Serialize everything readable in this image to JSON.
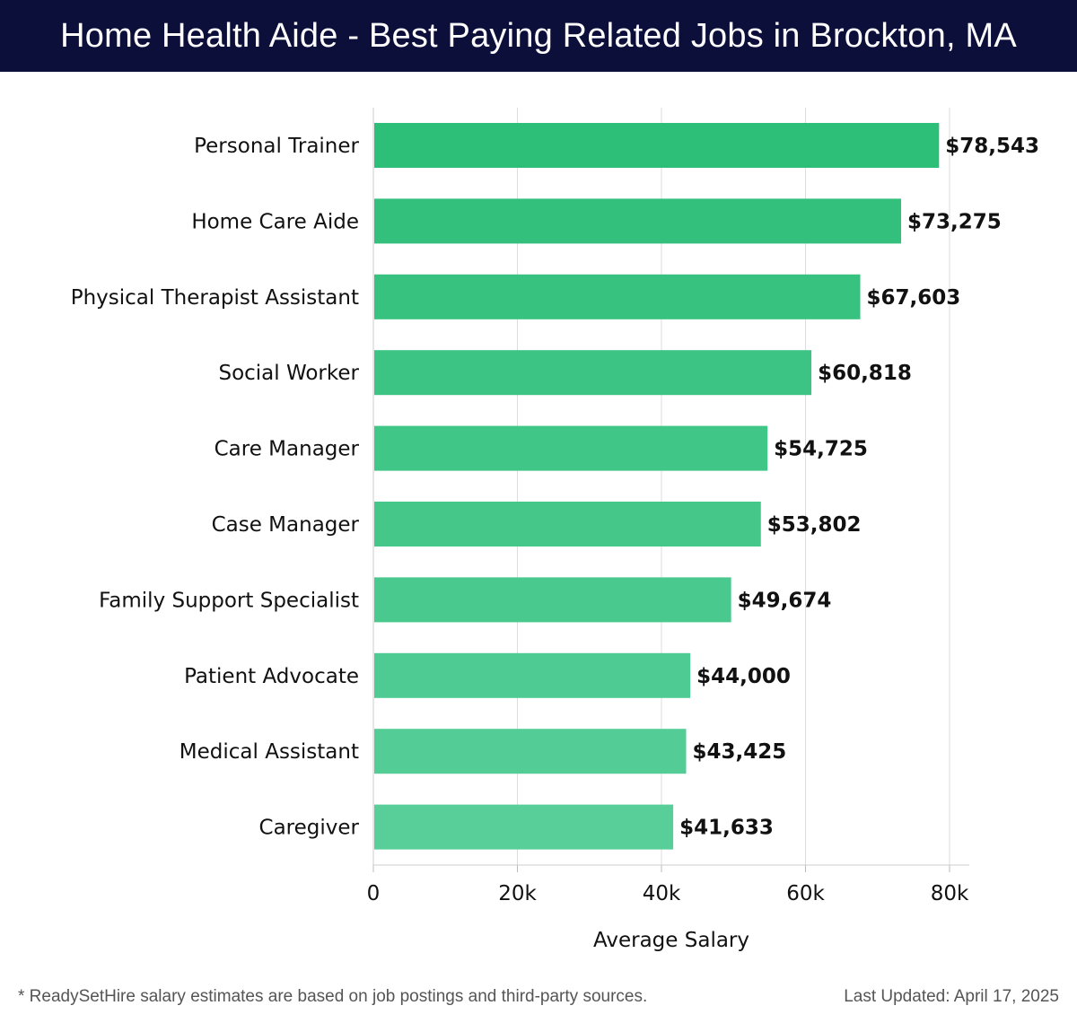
{
  "chart_data": {
    "type": "bar",
    "orientation": "horizontal",
    "title": "Home Health Aide - Best Paying Related Jobs in Brockton, MA",
    "categories": [
      "Personal Trainer",
      "Home Care Aide",
      "Physical Therapist Assistant",
      "Social Worker",
      "Care Manager",
      "Case Manager",
      "Family Support Specialist",
      "Patient Advocate",
      "Medical Assistant",
      "Caregiver"
    ],
    "values": [
      78543,
      73275,
      67603,
      60818,
      54725,
      53802,
      49674,
      44000,
      43425,
      41633
    ],
    "value_labels": [
      "$78,543",
      "$73,275",
      "$67,603",
      "$60,818",
      "$54,725",
      "$53,802",
      "$49,674",
      "$44,000",
      "$43,425",
      "$41,633"
    ],
    "xlabel": "Average Salary",
    "ylabel": "",
    "xlim": [
      0,
      80000
    ],
    "xticks": [
      0,
      20000,
      40000,
      60000,
      80000
    ],
    "xtick_labels": [
      "0",
      "20k",
      "40k",
      "60k",
      "80k"
    ],
    "grid": true,
    "colors": {
      "top_bar": "#2dbe78",
      "bottom_bar": "#58cf99",
      "header_bg": "#0d0f3b",
      "grid": "#dddddd"
    }
  },
  "footer": {
    "note": "* ReadySetHire salary estimates are based on job postings and third-party sources.",
    "updated": "Last Updated: April 17, 2025"
  }
}
